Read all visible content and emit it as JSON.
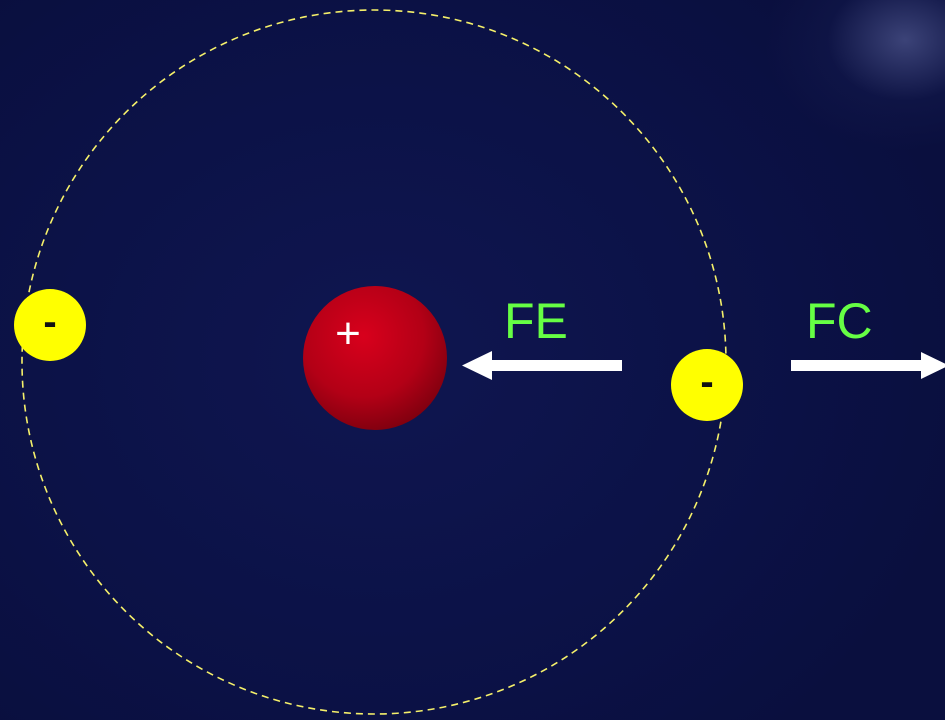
{
  "diagram": {
    "nucleus": {
      "sign": "+"
    },
    "electrons": [
      {
        "sign": "-"
      },
      {
        "sign": "-"
      }
    ],
    "forces": {
      "electric": {
        "label": "FE",
        "direction": "toward-nucleus"
      },
      "centrifugal": {
        "label": "FC",
        "direction": "away-from-nucleus"
      }
    },
    "orbit": {
      "style": "dashed"
    }
  },
  "colors": {
    "background": "#0b1145",
    "orbit": "#f5f06a",
    "nucleus": "#c0001a",
    "electron": "#ffff00",
    "label": "#66ff44",
    "arrow": "#ffffff"
  }
}
